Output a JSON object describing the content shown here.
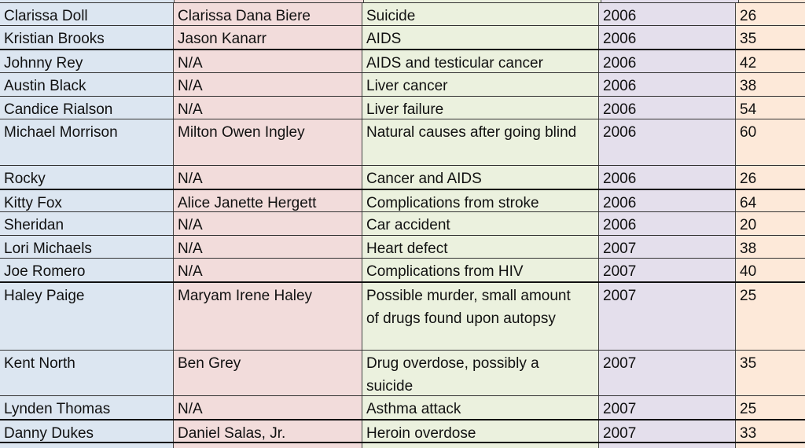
{
  "colors": {
    "name": "#dce6f1",
    "real_name": "#f2dcdb",
    "cause": "#ebf1de",
    "year": "#e4dfec",
    "age": "#fde9d9"
  },
  "rows": [
    {
      "name": "Clarissa Doll",
      "real_name": "Clarissa Dana Biere",
      "cause": "Suicide",
      "year": "2006",
      "age": "26"
    },
    {
      "name": "Kristian Brooks",
      "real_name": "Jason Kanarr",
      "cause": "AIDS",
      "year": "2006",
      "age": "35"
    },
    {
      "name": "Johnny Rey",
      "real_name": "N/A",
      "cause": "AIDS and testicular cancer",
      "year": "2006",
      "age": "42"
    },
    {
      "name": "Austin Black",
      "real_name": "N/A",
      "cause": "Liver cancer",
      "year": "2006",
      "age": "38"
    },
    {
      "name": "Candice Rialson",
      "real_name": "N/A",
      "cause": "Liver failure",
      "year": "2006",
      "age": "54"
    },
    {
      "name": "Michael Morrison",
      "real_name": "Milton Owen Ingley",
      "cause": "Natural causes after going blind",
      "year": "2006",
      "age": "60"
    },
    {
      "name": "Rocky",
      "real_name": "N/A",
      "cause": "Cancer and AIDS",
      "year": "2006",
      "age": "26"
    },
    {
      "name": "Kitty Fox",
      "real_name": "Alice Janette Hergett",
      "cause": "Complications from stroke",
      "year": "2006",
      "age": "64"
    },
    {
      "name": "Sheridan",
      "real_name": "N/A",
      "cause": "Car accident",
      "year": "2006",
      "age": "20"
    },
    {
      "name": "Lori Michaels",
      "real_name": "N/A",
      "cause": "Heart defect",
      "year": "2007",
      "age": "38"
    },
    {
      "name": "Joe Romero",
      "real_name": "N/A",
      "cause": "Complications from HIV",
      "year": "2007",
      "age": "40"
    },
    {
      "name": "Haley Paige",
      "real_name": "Maryam Irene Haley",
      "cause": "Possible murder, small amount of drugs found upon autopsy",
      "year": "2007",
      "age": "25"
    },
    {
      "name": "Kent North",
      "real_name": "Ben Grey",
      "cause": "Drug overdose, possibly a suicide",
      "year": "2007",
      "age": "35"
    },
    {
      "name": "Lynden Thomas",
      "real_name": "N/A",
      "cause": "Asthma attack",
      "year": "2007",
      "age": "25"
    },
    {
      "name": "Danny Dukes",
      "real_name": "Daniel Salas, Jr.",
      "cause": "Heroin overdose",
      "year": "2007",
      "age": "33"
    }
  ]
}
